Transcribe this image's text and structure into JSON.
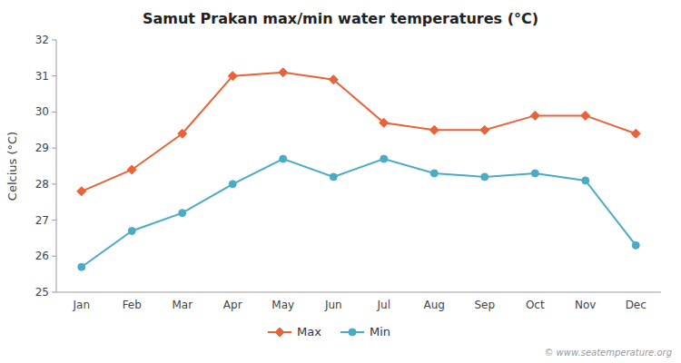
{
  "chart_data": {
    "type": "line",
    "title": "Samut Prakan max/min water temperatures (°C)",
    "y_label": "Celcius (°C)",
    "categories": [
      "Jan",
      "Feb",
      "Mar",
      "Apr",
      "May",
      "Jun",
      "Jul",
      "Aug",
      "Sep",
      "Oct",
      "Nov",
      "Dec"
    ],
    "series": [
      {
        "name": "Max",
        "color": "#e8623a",
        "marker": "diamond",
        "values": [
          27.8,
          28.4,
          29.4,
          31.0,
          31.1,
          30.9,
          29.7,
          29.5,
          29.5,
          29.9,
          29.9,
          29.4
        ]
      },
      {
        "name": "Min",
        "color": "#4babc5",
        "marker": "circle",
        "values": [
          25.7,
          26.7,
          27.2,
          28.0,
          28.7,
          28.2,
          28.7,
          28.3,
          28.2,
          28.3,
          28.1,
          26.3
        ]
      }
    ],
    "ylim": [
      25,
      32
    ],
    "yticks": [
      25,
      26,
      27,
      28,
      29,
      30,
      31,
      32
    ],
    "grid": false,
    "legend": "bottom",
    "annotations": [
      "© www.seatemperature.org"
    ]
  }
}
